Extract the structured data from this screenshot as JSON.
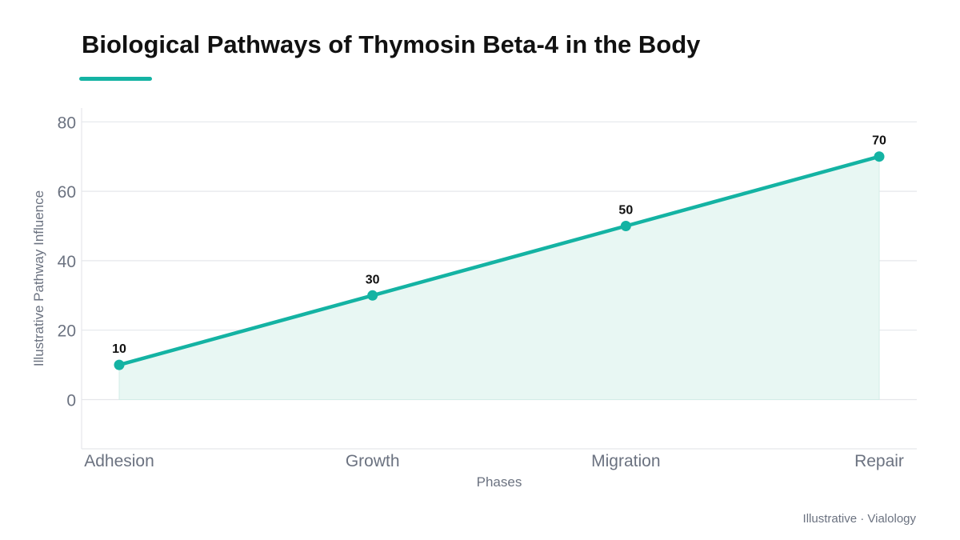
{
  "chart_data": {
    "type": "line",
    "title": "Biological Pathways of Thymosin Beta-4 in the Body",
    "xlabel": "Phases",
    "ylabel": "Illustrative Pathway Influence",
    "categories": [
      "Adhesion",
      "Growth",
      "Migration",
      "Repair"
    ],
    "series": [
      {
        "values": [
          10,
          30,
          50,
          70
        ]
      }
    ],
    "yticks": [
      0,
      20,
      40,
      60,
      80
    ],
    "ylim": [
      -14,
      84
    ],
    "grid": true,
    "data_labels": true,
    "area_fill": true,
    "line_color": "#14b3a3",
    "fill_color": "#e8f7f3"
  },
  "footer": "Illustrative · Vialology",
  "colors": {
    "accent": "#14b3a3",
    "grid": "#e5e7eb",
    "text_muted": "#6b7280"
  }
}
